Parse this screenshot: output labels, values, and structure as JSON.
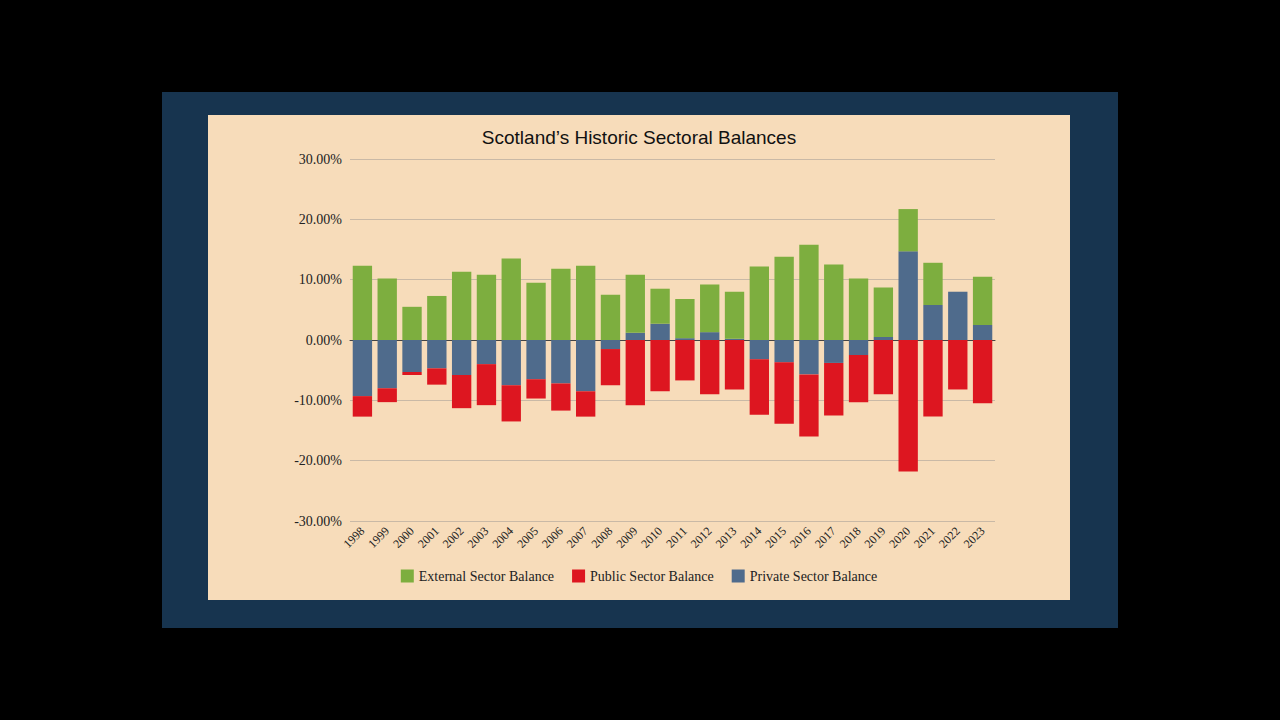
{
  "chart_data": {
    "type": "bar",
    "title": "Scotland’s Historic Sectoral Balances",
    "stacked": true,
    "grid": true,
    "legend": "bottom",
    "categories": [
      "1998",
      "1999",
      "2000",
      "2001",
      "2002",
      "2003",
      "2004",
      "2005",
      "2006",
      "2007",
      "2008",
      "2009",
      "2010",
      "2011",
      "2012",
      "2013",
      "2014",
      "2015",
      "2016",
      "2017",
      "2018",
      "2019",
      "2020",
      "2021",
      "2022",
      "2023"
    ],
    "ylim": [
      -30,
      30
    ],
    "yticks": [
      {
        "value": -30,
        "label": "-30.00%"
      },
      {
        "value": -20,
        "label": "-20.00%"
      },
      {
        "value": -10,
        "label": "-10.00%"
      },
      {
        "value": 0,
        "label": "0.00%"
      },
      {
        "value": 10,
        "label": "10.00%"
      },
      {
        "value": 20,
        "label": "20.00%"
      },
      {
        "value": 30,
        "label": "30.00%"
      }
    ],
    "series": [
      {
        "name": "External Sector Balance",
        "color": "#7dae3f",
        "values": [
          12.3,
          10.2,
          5.5,
          7.3,
          11.3,
          10.8,
          13.5,
          9.5,
          11.8,
          12.3,
          7.5,
          9.6,
          5.8,
          6.5,
          7.9,
          7.8,
          12.2,
          13.8,
          15.8,
          12.5,
          10.2,
          8.2,
          7.0,
          7.0,
          0,
          8.0
        ]
      },
      {
        "name": "Public Sector Balance",
        "color": "#dd1620",
        "values": [
          -3.4,
          -2.3,
          -0.5,
          -2.7,
          -5.5,
          -6.8,
          -6.0,
          -3.2,
          -4.5,
          -4.2,
          -6.0,
          -10.8,
          -8.5,
          -6.7,
          -9.0,
          -8.2,
          -9.2,
          -10.2,
          -10.3,
          -8.7,
          -7.8,
          -9.0,
          -21.8,
          -12.7,
          -8.2,
          -10.5
        ]
      },
      {
        "name": "Private Sector Balance",
        "color": "#4f6b8c",
        "values": [
          -9.3,
          -8.0,
          -5.3,
          -4.7,
          -5.8,
          -4.0,
          -7.5,
          -6.5,
          -7.2,
          -8.5,
          -1.5,
          1.2,
          2.7,
          0.3,
          1.3,
          0.2,
          -3.2,
          -3.7,
          -5.7,
          -3.8,
          -2.5,
          0.5,
          14.7,
          5.8,
          8.0,
          2.5
        ]
      }
    ]
  }
}
